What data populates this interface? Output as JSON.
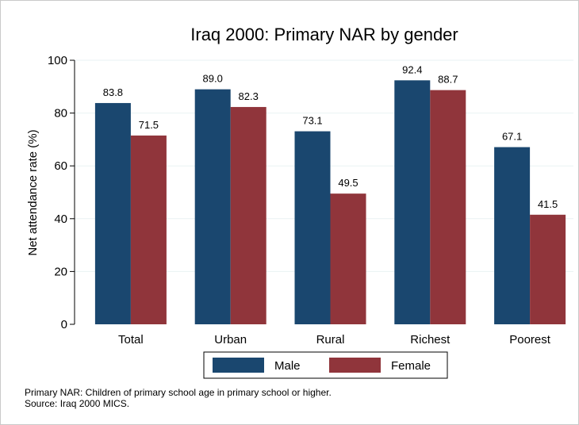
{
  "chart_data": {
    "type": "bar",
    "title": "Iraq 2000: Primary NAR by gender",
    "ylabel": "Net attendance rate (%)",
    "xlabel": "",
    "categories": [
      "Total",
      "Urban",
      "Rural",
      "Richest",
      "Poorest"
    ],
    "series": [
      {
        "name": "Male",
        "values": [
          83.8,
          89.0,
          73.1,
          92.4,
          67.1
        ],
        "color": "#1a476f"
      },
      {
        "name": "Female",
        "values": [
          71.5,
          82.3,
          49.5,
          88.7,
          41.5
        ],
        "color": "#90353b"
      }
    ],
    "value_labels": {
      "Male": [
        "83.8",
        "89.0",
        "73.1",
        "92.4",
        "67.1"
      ],
      "Female": [
        "71.5",
        "82.3",
        "49.5",
        "88.7",
        "41.5"
      ]
    },
    "ylim": [
      0,
      100
    ],
    "yticks": [
      0,
      20,
      40,
      60,
      80,
      100
    ],
    "ytick_labels": [
      "0",
      "20",
      "40",
      "60",
      "80",
      "100"
    ],
    "grid": true,
    "legend_position": "bottom"
  },
  "notes": [
    "Primary NAR: Children of primary school age in primary school or higher.",
    "Source: Iraq 2000 MICS."
  ]
}
